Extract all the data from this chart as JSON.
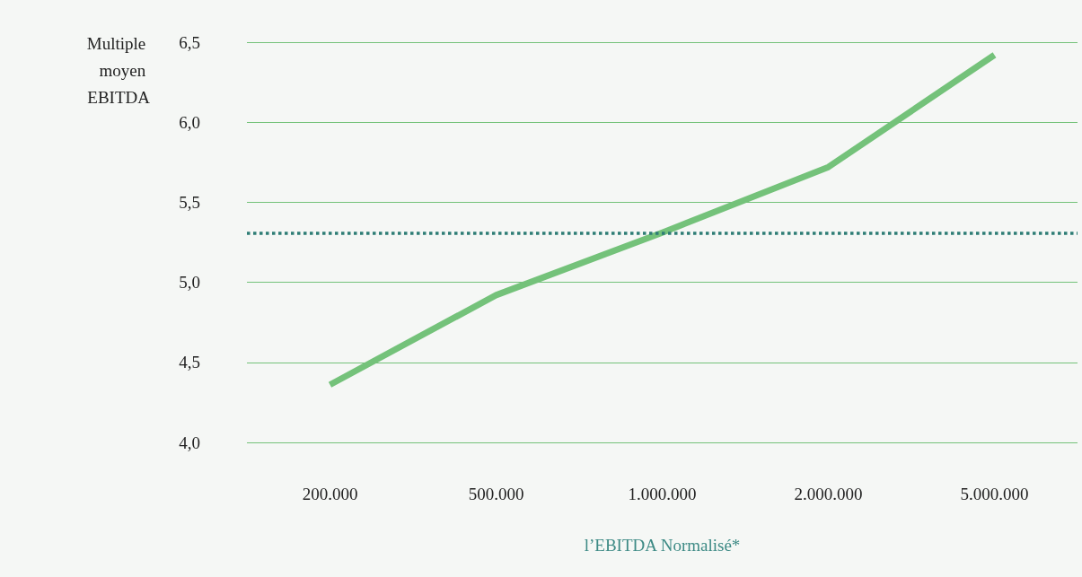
{
  "chart_data": {
    "type": "line",
    "xlabel": "l’EBITDA Normalisé*",
    "ylabel": "Multiple moyen EBITDA",
    "categories": [
      "200.000",
      "500.000",
      "1.000.000",
      "2.000.000",
      "5.000.000"
    ],
    "series": [
      {
        "color": "#74c27a",
        "values": [
          4.36,
          4.92,
          5.31,
          5.72,
          6.42
        ]
      }
    ],
    "ylim": [
      4.0,
      6.5
    ],
    "yticks": [
      {
        "value": 4.0,
        "label": "4,0"
      },
      {
        "value": 4.5,
        "label": "4,5"
      },
      {
        "value": 5.0,
        "label": "5,0"
      },
      {
        "value": 5.5,
        "label": "5,5"
      },
      {
        "value": 6.0,
        "label": "6,0"
      },
      {
        "value": 6.5,
        "label": "6,5"
      }
    ],
    "ref_lines": [
      {
        "axis": "y",
        "value": 5.31,
        "color": "#2e7d75",
        "line_style": "dotted"
      }
    ],
    "grid": "y",
    "marker": "none",
    "line_style": "solid"
  }
}
